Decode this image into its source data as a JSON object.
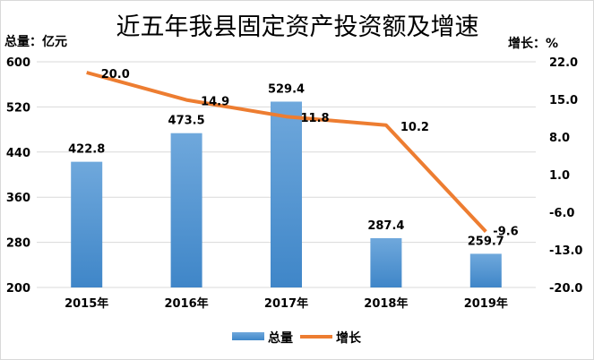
{
  "chart_data": {
    "type": "bar+line",
    "title": "近五年我县固定资产投资额及增速",
    "ylabel_left": "总量：亿元",
    "ylabel_right": "增长：%",
    "categories": [
      "2015年",
      "2016年",
      "2017年",
      "2018年",
      "2019年"
    ],
    "series": [
      {
        "name": "总量",
        "type": "bar",
        "axis": "left",
        "values": [
          422.8,
          473.5,
          529.4,
          287.4,
          259.7
        ],
        "labels": [
          "422.8",
          "473.5",
          "529.4",
          "287.4",
          "259.7"
        ],
        "color": "#5b9bd5"
      },
      {
        "name": "增长",
        "type": "line",
        "axis": "right",
        "values": [
          20.0,
          14.9,
          11.8,
          10.2,
          -9.6
        ],
        "labels": [
          "20.0",
          "14.9",
          "11.8",
          "10.2",
          "-9.6"
        ],
        "color": "#ed7d31"
      }
    ],
    "left_axis": {
      "min": 200,
      "max": 600,
      "ticks": [
        "200",
        "280",
        "360",
        "440",
        "520",
        "600"
      ]
    },
    "right_axis": {
      "min": -20,
      "max": 22,
      "ticks": [
        "-20.0",
        "-13.0",
        "-6.0",
        "1.0",
        "8.0",
        "15.0",
        "22.0"
      ]
    },
    "grid": true,
    "legend": "bottom"
  }
}
